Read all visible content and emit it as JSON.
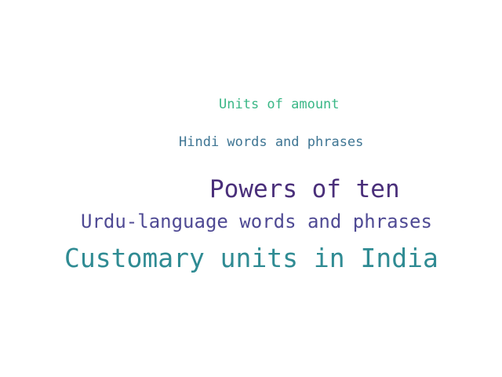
{
  "words": [
    {
      "text": "Units of amount",
      "color": "#3ab786"
    },
    {
      "text": "Hindi words and phrases",
      "color": "#3e7593"
    },
    {
      "text": "Powers of ten",
      "color": "#4a2f7a"
    },
    {
      "text": "Urdu-language words and phrases",
      "color": "#4f4a94"
    },
    {
      "text": "Customary units in India",
      "color": "#2f8b93"
    }
  ]
}
